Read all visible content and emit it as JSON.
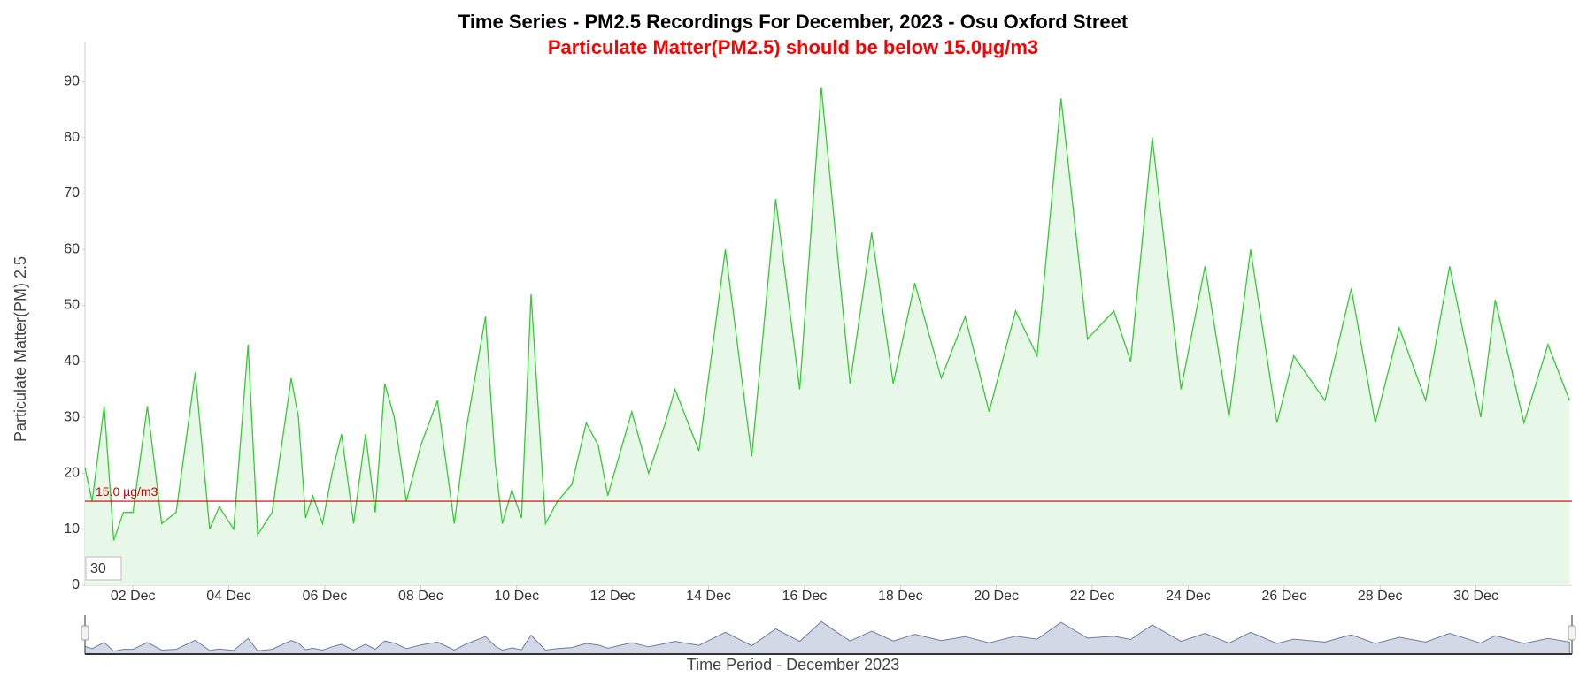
{
  "chart_data": {
    "type": "area",
    "title": "Time Series - PM2.5 Recordings For December, 2023 - Osu Oxford Street",
    "subtitle": "Particulate Matter(PM2.5) should be below 15.0µg/m3",
    "x_label": "Time Period - December 2023",
    "y_label": "Particulate Matter(PM) 2.5",
    "input_value": "30",
    "threshold": {
      "value": 15,
      "label": "15.0 µg/m3",
      "color": "#cc0000"
    },
    "series": [
      {
        "name": "PM2.5",
        "color": "#33cc33",
        "fill": "#e8f8e8",
        "x": [
          1.0,
          1.15,
          1.4,
          1.6,
          1.8,
          2.0,
          2.3,
          2.6,
          2.9,
          3.3,
          3.6,
          3.8,
          4.1,
          4.4,
          4.6,
          4.9,
          5.3,
          5.45,
          5.6,
          5.75,
          5.95,
          6.15,
          6.35,
          6.6,
          6.85,
          7.05,
          7.25,
          7.45,
          7.7,
          8.0,
          8.35,
          8.7,
          8.95,
          9.35,
          9.55,
          9.7,
          9.9,
          10.1,
          10.3,
          10.6,
          10.85,
          11.15,
          11.45,
          11.7,
          11.9,
          12.4,
          12.75,
          13.1,
          13.3,
          13.8,
          14.35,
          14.9,
          15.4,
          15.9,
          16.35,
          16.95,
          17.4,
          17.85,
          18.3,
          18.85,
          19.35,
          19.85,
          20.4,
          20.85,
          21.35,
          21.9,
          22.45,
          22.8,
          23.25,
          23.85,
          24.35,
          24.85,
          25.3,
          25.85,
          26.2,
          26.85,
          27.4,
          27.9,
          28.4,
          28.95,
          29.45,
          30.1,
          30.4,
          31.0,
          31.5,
          31.95
        ],
        "values": [
          21,
          15,
          32,
          8,
          13,
          13,
          32,
          11,
          13,
          38,
          10,
          14,
          10,
          43,
          9,
          13,
          37,
          30,
          12,
          16,
          11,
          20,
          27,
          11,
          27,
          13,
          36,
          30,
          15,
          25,
          33,
          11,
          28,
          48,
          22,
          11,
          17,
          12,
          52,
          11,
          15,
          18,
          29,
          25,
          16,
          31,
          20,
          29,
          35,
          24,
          60,
          23,
          69,
          35,
          89,
          36,
          63,
          36,
          54,
          37,
          48,
          31,
          49,
          41,
          87,
          44,
          49,
          40,
          80,
          35,
          57,
          30,
          60,
          29,
          41,
          33,
          53,
          29,
          46,
          33,
          57,
          30,
          51,
          29,
          43,
          33
        ]
      }
    ],
    "xlim": [
      1,
      32
    ],
    "xticks": [
      {
        "value": 2,
        "label": "02 Dec"
      },
      {
        "value": 4,
        "label": "04 Dec"
      },
      {
        "value": 6,
        "label": "06 Dec"
      },
      {
        "value": 8,
        "label": "08 Dec"
      },
      {
        "value": 10,
        "label": "10 Dec"
      },
      {
        "value": 12,
        "label": "12 Dec"
      },
      {
        "value": 14,
        "label": "14 Dec"
      },
      {
        "value": 16,
        "label": "16 Dec"
      },
      {
        "value": 18,
        "label": "18 Dec"
      },
      {
        "value": 20,
        "label": "20 Dec"
      },
      {
        "value": 22,
        "label": "22 Dec"
      },
      {
        "value": 24,
        "label": "24 Dec"
      },
      {
        "value": 26,
        "label": "26 Dec"
      },
      {
        "value": 28,
        "label": "28 Dec"
      },
      {
        "value": 30,
        "label": "30 Dec"
      }
    ],
    "ylim": [
      0,
      97
    ],
    "yticks": [
      0,
      10,
      20,
      30,
      40,
      50,
      60,
      70,
      80,
      90
    ],
    "grid": false
  }
}
